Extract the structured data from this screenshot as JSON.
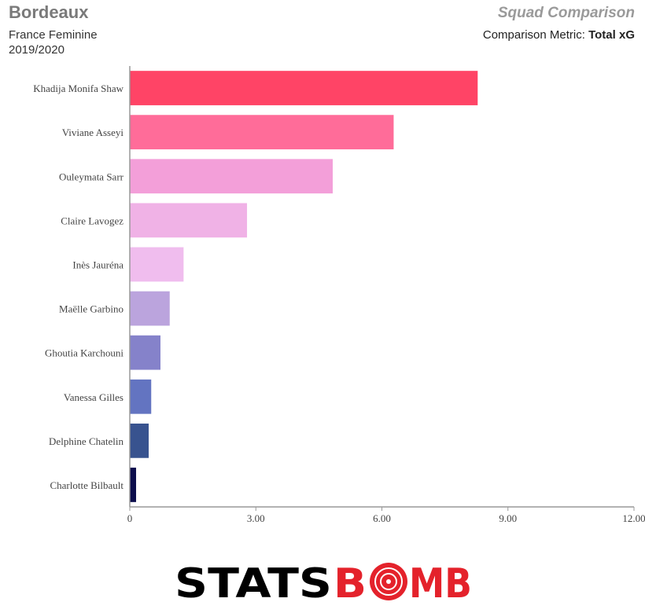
{
  "header": {
    "team": "Bordeaux",
    "competition": "France Feminine",
    "season": "2019/2020",
    "chart_title": "Squad Comparison",
    "metric_label": "Comparison Metric:",
    "metric_value": "Total xG"
  },
  "chart_data": {
    "type": "bar",
    "orientation": "horizontal",
    "categories": [
      "Khadija Monifa Shaw",
      "Viviane Asseyi",
      "Ouleymata Sarr",
      "Claire Lavogez",
      "Inès Jauréna",
      "Maëlle Garbino",
      "Ghoutia Karchouni",
      "Vanessa Gilles",
      "Delphine Chatelin",
      "Charlotte Bilbault"
    ],
    "values": [
      8.28,
      6.28,
      4.83,
      2.79,
      1.28,
      0.95,
      0.73,
      0.51,
      0.45,
      0.15
    ],
    "colors": [
      "#ff4466",
      "#ff6c99",
      "#f39fd9",
      "#f0b2e6",
      "#f0bdee",
      "#bba4dd",
      "#8582ca",
      "#6374c1",
      "#38538f",
      "#0c0d4c"
    ],
    "xlim": [
      0,
      12
    ],
    "xticks": [
      "0",
      "3.00",
      "6.00",
      "9.00",
      "12.00"
    ],
    "xtick_values": [
      0,
      3,
      6,
      9,
      12
    ],
    "xlabel": "",
    "ylabel": "",
    "grid": false
  },
  "logo": {
    "text_left": "STATS",
    "text_right": "B",
    "text_right2": "MB",
    "color_left": "#000000",
    "color_right": "#e4222b"
  }
}
